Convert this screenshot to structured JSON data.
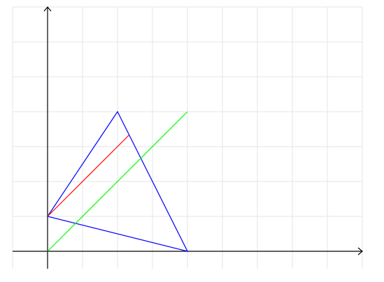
{
  "chart_data": {
    "type": "line",
    "title": "",
    "xlabel": "",
    "ylabel": "",
    "xlim": [
      -1,
      9
    ],
    "ylim": [
      -0.5,
      7
    ],
    "grid": true,
    "axes": {
      "x_arrow": true,
      "y_arrow": true,
      "origin": [
        0,
        0
      ]
    },
    "series": [
      {
        "color": "#0000ff",
        "closed": true,
        "points": [
          [
            0,
            1
          ],
          [
            2,
            4
          ],
          [
            4,
            0
          ]
        ]
      },
      {
        "color": "#ff0000",
        "closed": false,
        "points": [
          [
            0,
            1
          ],
          [
            2.33,
            3.33
          ]
        ]
      },
      {
        "color": "#00ff00",
        "closed": false,
        "points": [
          [
            0,
            0
          ],
          [
            4,
            4
          ]
        ]
      }
    ]
  },
  "colors": {
    "grid": "#e6e6e6",
    "axis": "#000000",
    "background": "#ffffff"
  }
}
